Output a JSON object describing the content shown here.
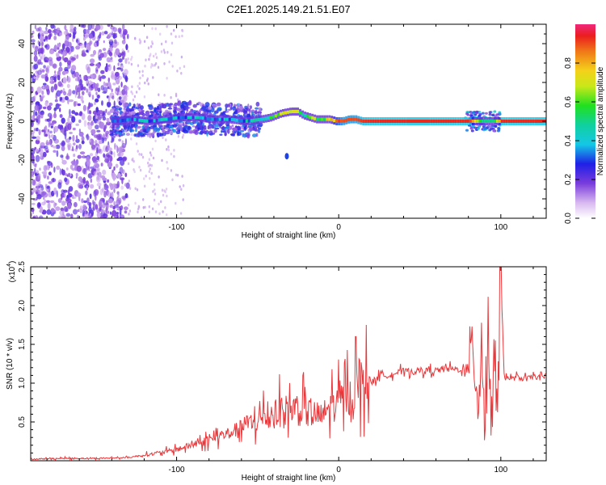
{
  "chart_data": [
    {
      "type": "heatmap",
      "title": "C2E1.2025.149.21.51.E07",
      "xlabel": "Height of straight line (km)",
      "ylabel": "Frequency (Hz)",
      "xlim": [
        -190,
        128
      ],
      "ylim": [
        -50,
        50
      ],
      "xticks": [
        -100,
        0,
        100
      ],
      "xtick_labels": [
        "-100",
        "0",
        "100"
      ],
      "yticks": [
        -40,
        -20,
        0,
        20,
        40
      ],
      "ytick_labels": [
        "-40",
        "-20",
        "0",
        "20",
        "40"
      ],
      "colorbar": {
        "label": "Normalized spectral amplitude",
        "range": [
          0,
          1
        ],
        "ticks": [
          0.0,
          0.2,
          0.4,
          0.6,
          0.8
        ],
        "tick_labels": [
          "0.0",
          "0.2",
          "0.4",
          "0.6",
          "0.8"
        ]
      },
      "ridge": {
        "x": [
          -138,
          -128,
          -118,
          -108,
          -98,
          -88,
          -78,
          -68,
          -58,
          -48,
          -42,
          -36,
          -30,
          -26,
          -22,
          -18,
          -14,
          -10,
          -6,
          -2,
          2,
          6,
          10,
          14,
          20,
          40,
          60,
          80,
          88,
          95,
          100,
          110,
          128
        ],
        "freq": [
          0,
          1,
          0,
          1,
          2,
          2,
          1,
          1,
          0,
          1,
          2,
          4,
          5,
          5,
          3,
          2,
          1,
          1,
          1,
          0,
          0,
          1,
          1,
          0,
          0,
          0,
          0,
          0,
          0,
          0,
          0,
          0,
          0
        ],
        "amplitude": [
          0.35,
          0.35,
          0.35,
          0.35,
          0.35,
          0.35,
          0.35,
          0.35,
          0.4,
          0.45,
          0.55,
          0.7,
          0.75,
          0.7,
          0.55,
          0.6,
          0.55,
          0.6,
          0.75,
          0.85,
          0.9,
          0.9,
          0.9,
          0.92,
          0.93,
          0.93,
          0.93,
          0.93,
          0.5,
          0.5,
          0.93,
          0.93,
          0.93
        ]
      }
    },
    {
      "type": "line",
      "title": "",
      "xlabel": "Height of straight line (km)",
      "ylabel": "SNR (10 * v/v)",
      "yscale_label": "(x10",
      "yscale_exp": "4",
      "yscale_close": ")",
      "xlim": [
        -190,
        128
      ],
      "ylim": [
        0,
        2.5
      ],
      "xticks": [
        -100,
        0,
        100
      ],
      "xtick_labels": [
        "-100",
        "0",
        "100"
      ],
      "yticks": [
        0.5,
        1.0,
        1.5,
        2.0,
        2.5
      ],
      "ytick_labels": [
        "0.5",
        "1.0",
        "1.5",
        "2.0",
        "2.5"
      ],
      "color": "#e8383b",
      "series": [
        {
          "name": "SNR",
          "x": [
            -190,
            -170,
            -150,
            -130,
            -120,
            -110,
            -100,
            -90,
            -80,
            -70,
            -60,
            -50,
            -40,
            -30,
            -20,
            -10,
            -5,
            0,
            5,
            10,
            12,
            15,
            20,
            25,
            30,
            40,
            50,
            60,
            70,
            75,
            80,
            83,
            86,
            88,
            90,
            92,
            94,
            96,
            98,
            100,
            102,
            106,
            110,
            115,
            120,
            125,
            128
          ],
          "y": [
            0.02,
            0.03,
            0.03,
            0.04,
            0.07,
            0.1,
            0.14,
            0.2,
            0.26,
            0.33,
            0.42,
            0.5,
            0.58,
            0.65,
            0.6,
            0.55,
            0.7,
            0.7,
            0.8,
            0.85,
            1.05,
            0.95,
            1.0,
            1.08,
            1.1,
            1.15,
            1.15,
            1.16,
            1.18,
            1.17,
            1.15,
            1.5,
            0.6,
            1.8,
            0.3,
            1.7,
            0.4,
            1.9,
            0.15,
            2.5,
            1.1,
            1.05,
            1.07,
            1.05,
            1.08,
            1.07,
            1.1
          ]
        }
      ]
    }
  ]
}
